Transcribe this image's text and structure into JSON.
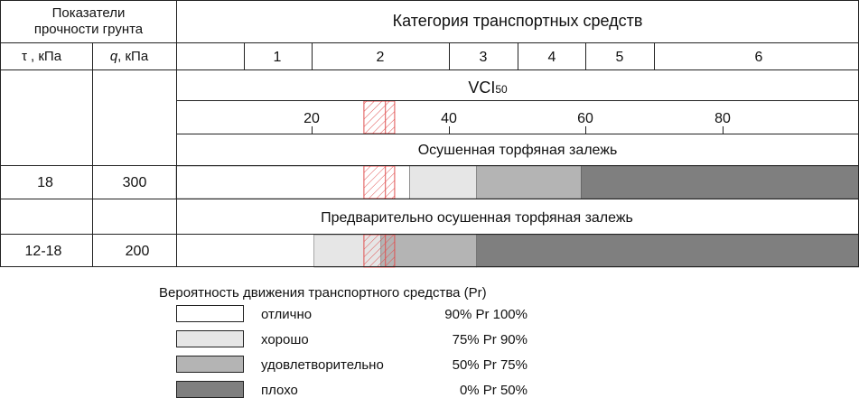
{
  "header": {
    "indicators": "Показатели прочности грунта",
    "indicators_line1": "Показатели",
    "indicators_line2": "прочности грунта",
    "tau_label": "τ , кПа",
    "q_label_var": "q",
    "q_label_unit": ", кПа",
    "vehicle_category": "Категория транспортных средств",
    "categories": [
      "1",
      "2",
      "3",
      "4",
      "5",
      "6"
    ],
    "vci_label": "VCI",
    "vci_sub": "50",
    "vci_ticks": [
      "20",
      "40",
      "60",
      "80"
    ]
  },
  "sections": [
    {
      "title": "Осушенная торфяная залежь",
      "tau": "18",
      "q": "300",
      "bands": [
        {
          "from": 0,
          "to": 34.2,
          "level": "excellent"
        },
        {
          "from": 34.2,
          "to": 44.0,
          "level": "good"
        },
        {
          "from": 44.0,
          "to": 59.3,
          "level": "satisfactory"
        },
        {
          "from": 59.3,
          "to": 100,
          "level": "poor"
        }
      ]
    },
    {
      "title": "Предварительно осушенная торфяная залежь",
      "tau": "12-18",
      "q": "200",
      "bands": [
        {
          "from": 20.2,
          "to": 30.0,
          "level": "good"
        },
        {
          "from": 30.0,
          "to": 44.0,
          "level": "satisfactory"
        },
        {
          "from": 44.0,
          "to": 100,
          "level": "poor"
        }
      ]
    }
  ],
  "hatched_range": {
    "from": 27.5,
    "to": 32.0
  },
  "legend": {
    "title": "Вероятность движения транспортного средства (Pr)",
    "items": [
      {
        "level": "excellent",
        "label": "отлично",
        "range": "90% Pr 100%"
      },
      {
        "level": "good",
        "label": "хорошо",
        "range": "75% Pr 90%"
      },
      {
        "level": "satisfactory",
        "label": "удовлетворительно",
        "range": "50% Pr 75%"
      },
      {
        "level": "poor",
        "label": "плохо",
        "range": "0% Pr 50%"
      }
    ]
  },
  "colors": {
    "excellent": "#ffffff",
    "good": "#e6e6e6",
    "satisfactory": "#b4b4b4",
    "poor": "#7f7f7f",
    "hatch": "#e05050",
    "grid": "#222222"
  }
}
